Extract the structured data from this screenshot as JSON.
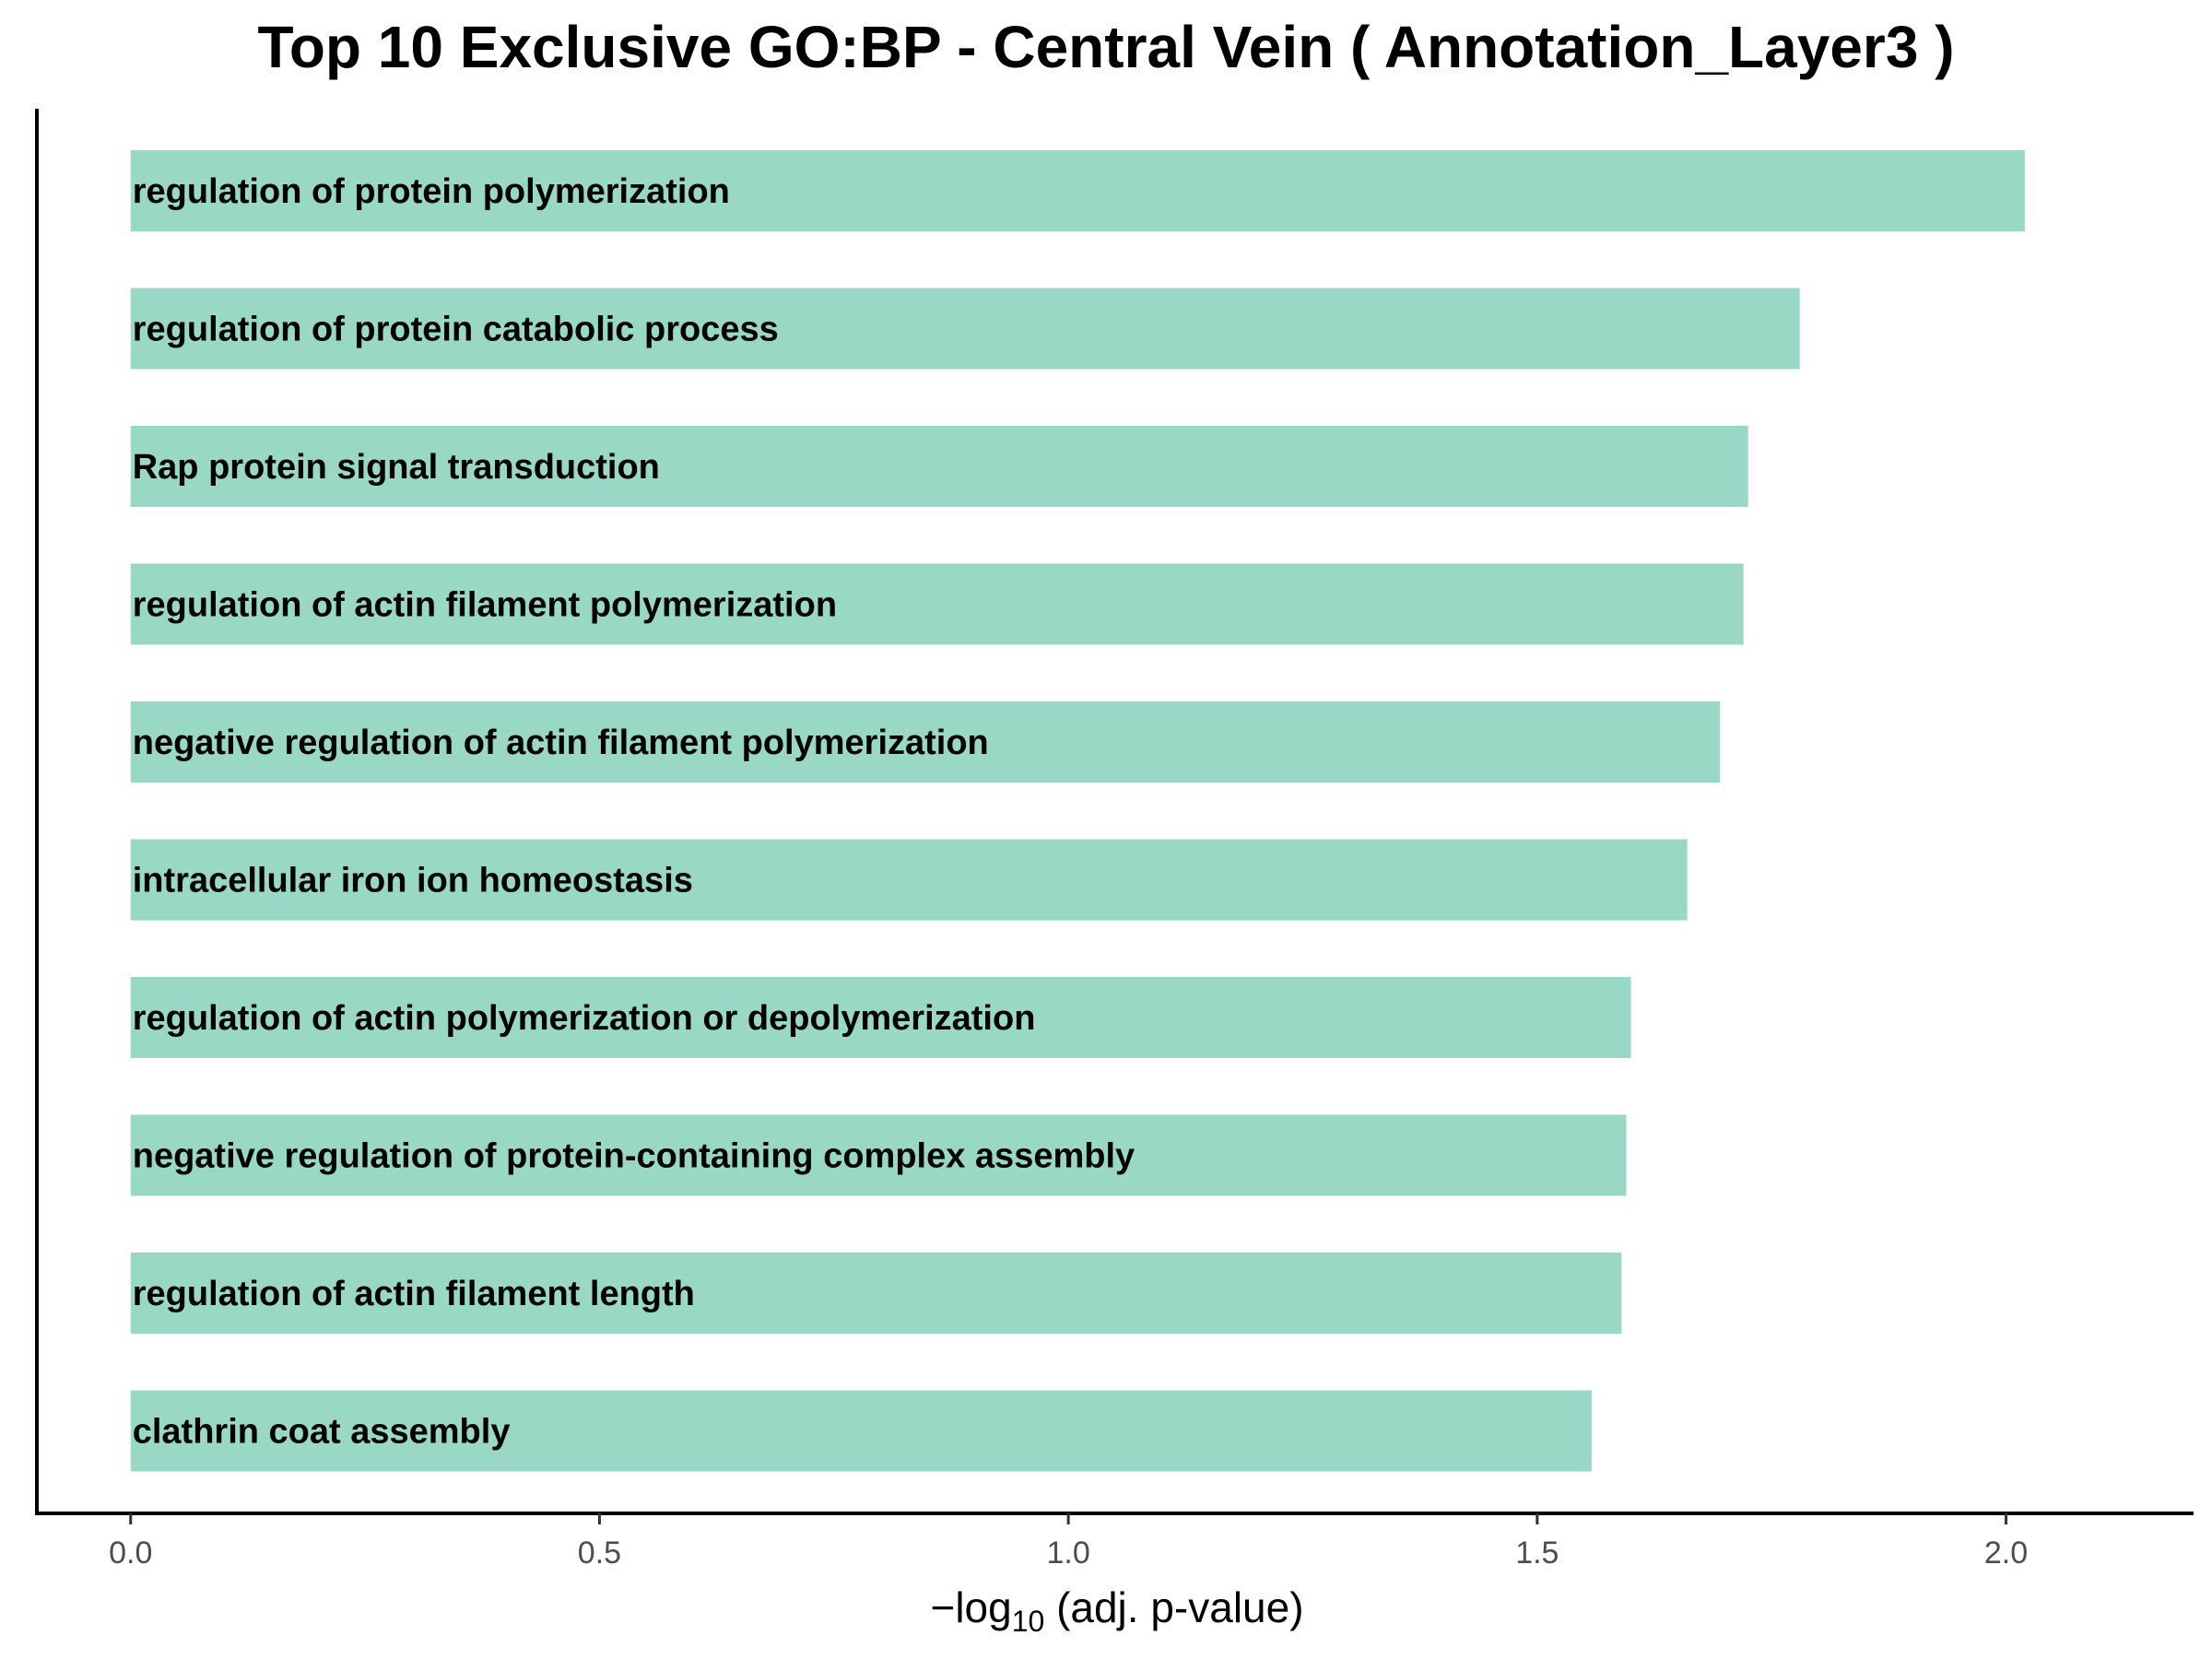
{
  "chart_data": {
    "type": "bar",
    "orientation": "horizontal",
    "title": "Top 10 Exclusive GO:BP - Central Vein ( Annotation_Layer3 )",
    "xlabel_prefix": "−log",
    "xlabel_subscript": "10",
    "xlabel_suffix": " (adj. p-value)",
    "ylabel": "",
    "categories": [
      "regulation of protein polymerization",
      "regulation of protein catabolic process",
      "Rap protein signal transduction",
      "regulation of actin filament polymerization",
      "negative regulation of actin filament polymerization",
      "intracellular iron ion homeostasis",
      "regulation of actin polymerization or depolymerization",
      "negative regulation of protein-containing complex assembly",
      "regulation of actin filament length",
      "clathrin coat assembly"
    ],
    "values": [
      2.02,
      1.78,
      1.725,
      1.72,
      1.695,
      1.66,
      1.6,
      1.595,
      1.59,
      1.558
    ],
    "xlim": [
      -0.1,
      2.2
    ],
    "xticks": [
      0.0,
      0.5,
      1.0,
      1.5,
      2.0
    ],
    "xtick_labels": [
      "0.0",
      "0.5",
      "1.0",
      "1.5",
      "2.0"
    ],
    "bar_color": "#99d8c4",
    "grid": false,
    "legend": "none"
  }
}
